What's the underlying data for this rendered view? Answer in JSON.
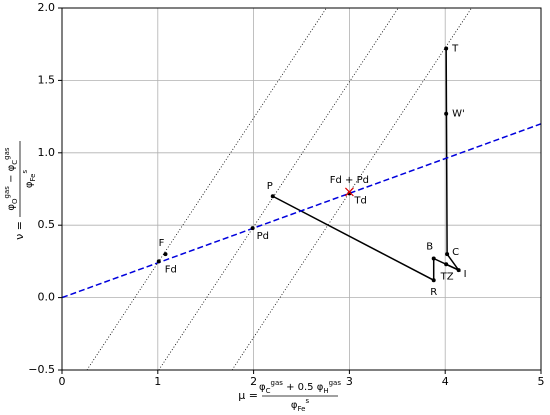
{
  "chart_data": {
    "type": "scatter",
    "xlim": [
      0,
      5
    ],
    "ylim": [
      -0.5,
      2.0
    ],
    "xticks": [
      0,
      1,
      2,
      3,
      4,
      5
    ],
    "yticks": [
      {
        "value": -0.5,
        "label": "−0.5"
      },
      {
        "value": 0,
        "label": "0.0"
      },
      {
        "value": 0.5,
        "label": "0.5"
      },
      {
        "value": 1.0,
        "label": "1.0"
      },
      {
        "value": 1.5,
        "label": "1.5"
      },
      {
        "value": 2.0,
        "label": "2.0"
      }
    ],
    "grid": true,
    "xlabel": {
      "lhs": "μ =",
      "numerator": "φ_C^gas + 0.5 φ_H^gas",
      "denominator": "φ_Fe^s"
    },
    "ylabel": {
      "lhs": "ν =",
      "numerator": "φ_O^gas − φ_C^gas",
      "denominator": "φ_Fe^s"
    },
    "points": {
      "labels": [
        "F",
        "Fd",
        "P",
        "Pd",
        "Td",
        "T",
        "W'",
        "C",
        "B",
        "TZ",
        "I",
        "R"
      ],
      "x": [
        1.08,
        1.01,
        2.2,
        1.99,
        3.0,
        4.01,
        4.01,
        4.02,
        3.88,
        4.01,
        4.14,
        3.88
      ],
      "y": [
        0.3,
        0.25,
        0.7,
        0.48,
        0.72,
        1.72,
        1.27,
        0.3,
        0.27,
        0.23,
        0.19,
        0.12
      ],
      "color": "#000000"
    },
    "marker": {
      "label": "Fd + Pd",
      "x": 3.0,
      "y": 0.73,
      "color": "#e00000"
    },
    "lines": [
      {
        "x": [
          2.2,
          3.88,
          3.88,
          4.14,
          4.02,
          4.01
        ],
        "y": [
          0.7,
          0.12,
          0.27,
          0.19,
          0.3,
          1.72
        ],
        "color": "#000000",
        "style": "solid"
      },
      {
        "x": [
          4.01,
          4.14
        ],
        "y": [
          0.23,
          0.19
        ],
        "color": "#000000",
        "style": "solid"
      },
      {
        "x": [
          0,
          5
        ],
        "y": [
          0,
          1.2
        ],
        "color": "#0000dd",
        "style": "dashed"
      },
      {
        "x": [
          0.26,
          2.76
        ],
        "y": [
          -0.5,
          2.0
        ],
        "color": "#000000",
        "style": "dotted"
      },
      {
        "x": [
          1.01,
          3.51
        ],
        "y": [
          -0.5,
          2.0
        ],
        "color": "#000000",
        "style": "dotted"
      },
      {
        "x": [
          1.775,
          4.275
        ],
        "y": [
          -0.5,
          2.0
        ],
        "color": "#000000",
        "style": "dotted"
      }
    ]
  }
}
